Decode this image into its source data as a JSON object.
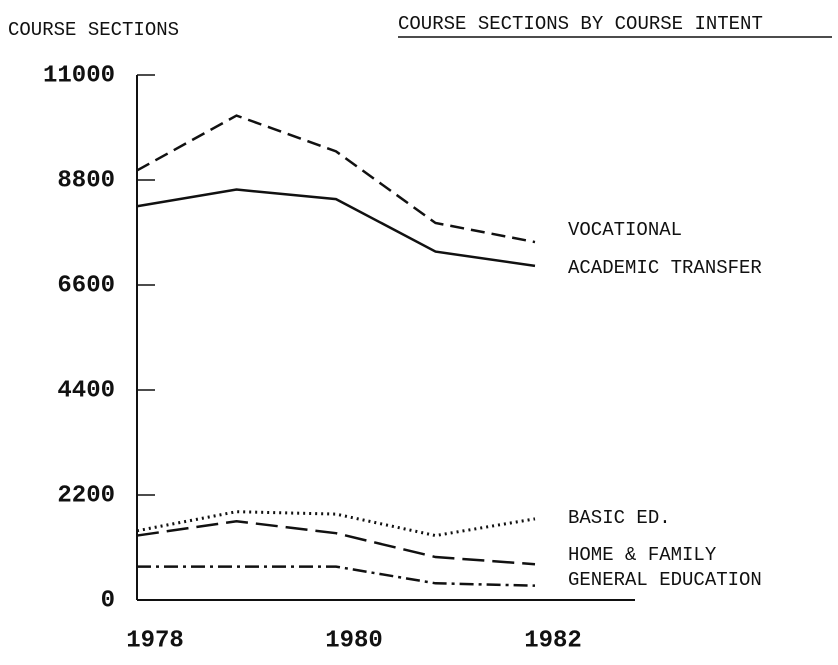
{
  "chart_data": {
    "type": "line",
    "title": "COURSE SECTIONS BY COURSE INTENT",
    "y_label": "COURSE SECTIONS",
    "categories": [
      "1978",
      null,
      "1980",
      null,
      "1982"
    ],
    "ylim": [
      0,
      11000
    ],
    "yticks": [
      0,
      2200,
      4400,
      6600,
      8800,
      11000
    ],
    "grid": false,
    "series": [
      {
        "name": "VOCATIONAL",
        "color": "#111111",
        "style": "dashed",
        "values": [
          9000,
          10150,
          9400,
          7900,
          7500
        ]
      },
      {
        "name": "ACADEMIC TRANSFER",
        "color": "#111111",
        "style": "solid",
        "values": [
          8250,
          8600,
          8400,
          7300,
          7000
        ]
      },
      {
        "name": "BASIC ED.",
        "color": "#111111",
        "style": "dotted",
        "values": [
          1450,
          1850,
          1800,
          1350,
          1700
        ]
      },
      {
        "name": "HOME & FAMILY",
        "color": "#111111",
        "style": "longdash",
        "values": [
          1350,
          1650,
          1400,
          900,
          750
        ]
      },
      {
        "name": "GENERAL EDUCATION",
        "color": "#111111",
        "style": "dashdot",
        "values": [
          700,
          700,
          700,
          350,
          300
        ]
      }
    ]
  }
}
